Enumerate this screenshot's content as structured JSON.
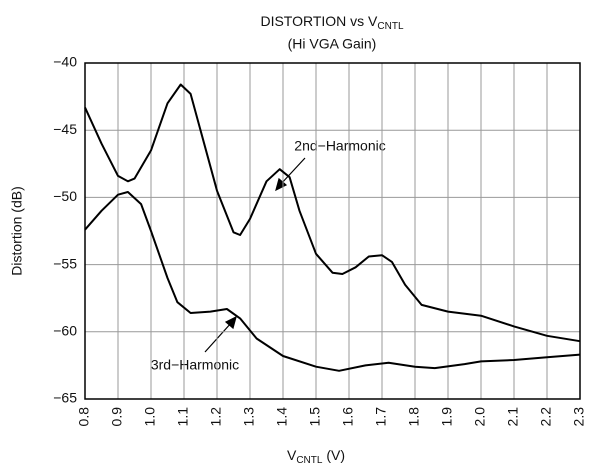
{
  "chart_data": {
    "type": "line",
    "title": {
      "main": "DISTORTION vs V",
      "sub": "CNTL"
    },
    "subtitle": "(Hi VGA Gain)",
    "x_label": {
      "main": "V",
      "sub": "CNTL",
      "unit": " (V)"
    },
    "y_label": "Distortion (dB)",
    "xlim": [
      0.8,
      2.3
    ],
    "xticks": [
      0.8,
      0.9,
      {
        "value": 1,
        "label": "1.0"
      },
      1.1,
      1.2,
      1.3,
      1.4,
      1.5,
      1.6,
      1.7,
      1.8,
      1.9,
      {
        "value": 2,
        "label": "2.0"
      },
      2.1,
      2.2,
      2.3
    ],
    "ylim": [
      -65,
      -40
    ],
    "yticks": [
      {
        "value": -40,
        "label": "−40"
      },
      {
        "value": -45,
        "label": "−45"
      },
      {
        "value": -50,
        "label": "−50"
      },
      {
        "value": -55,
        "label": "−55"
      },
      {
        "value": -60,
        "label": "−60"
      },
      {
        "value": -65,
        "label": "−65"
      }
    ],
    "grid": true,
    "annotations": [
      "2nd−Harmonic",
      "3rd−Harmonic"
    ],
    "series": [
      {
        "color": "#000000",
        "x": [
          0.8,
          0.85,
          0.9,
          0.93,
          0.95,
          1.0,
          1.05,
          1.09,
          1.12,
          1.15,
          1.2,
          1.25,
          1.27,
          1.3,
          1.35,
          1.39,
          1.42,
          1.45,
          1.5,
          1.55,
          1.58,
          1.62,
          1.66,
          1.7,
          1.73,
          1.77,
          1.82,
          1.9,
          2.0,
          2.1,
          2.2,
          2.3
        ],
        "values": [
          -43.3,
          -46,
          -48.4,
          -48.8,
          -48.6,
          -46.5,
          -43,
          -41.6,
          -42.3,
          -45,
          -49.5,
          -52.6,
          -52.8,
          -51.6,
          -48.8,
          -47.9,
          -48.5,
          -51,
          -54.2,
          -55.6,
          -55.7,
          -55.2,
          -54.4,
          -54.3,
          -54.8,
          -56.5,
          -58,
          -58.5,
          -58.8,
          -59.6,
          -60.3,
          -60.7
        ]
      },
      {
        "color": "#000000",
        "x": [
          0.8,
          0.85,
          0.9,
          0.93,
          0.97,
          1.0,
          1.05,
          1.08,
          1.12,
          1.18,
          1.23,
          1.27,
          1.32,
          1.4,
          1.5,
          1.57,
          1.65,
          1.72,
          1.8,
          1.86,
          1.95,
          2.0,
          2.1,
          2.2,
          2.3
        ],
        "values": [
          -52.4,
          -51,
          -49.8,
          -49.6,
          -50.5,
          -52.5,
          -56,
          -57.8,
          -58.6,
          -58.5,
          -58.3,
          -59,
          -60.5,
          -61.8,
          -62.6,
          -62.9,
          -62.5,
          -62.3,
          -62.6,
          -62.7,
          -62.4,
          -62.2,
          -62.1,
          -61.9,
          -61.7
        ]
      }
    ]
  }
}
